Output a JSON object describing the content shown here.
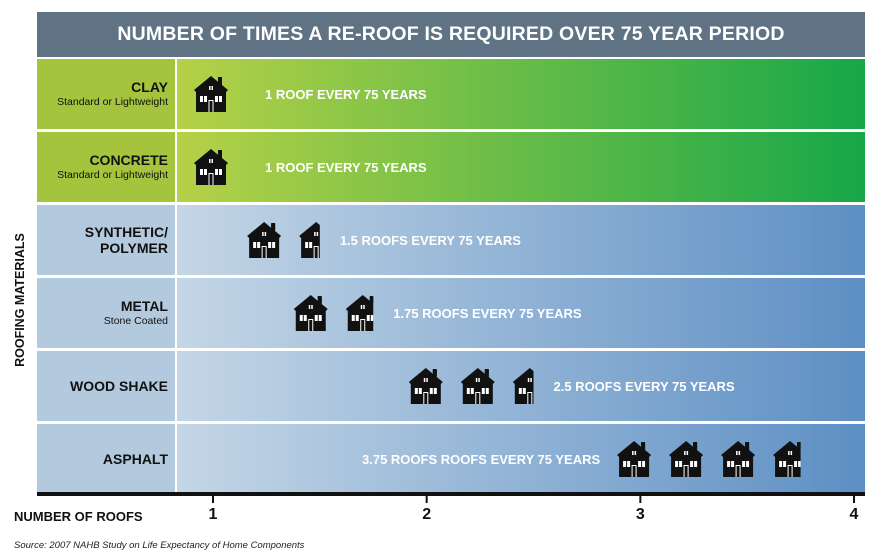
{
  "chart_data": {
    "type": "bar",
    "orientation": "horizontal",
    "title": "NUMBER OF TIMES A RE-ROOF IS REQUIRED OVER 75 YEAR PERIOD",
    "ylabel": "ROOFING MATERIALS",
    "xlabel": "NUMBER OF ROOFS",
    "xlim": [
      0.8,
      4.0
    ],
    "xticks": [
      "1",
      "2",
      "3",
      "4"
    ],
    "grid": false,
    "categories": [
      {
        "name": "CLAY",
        "subtitle": "Standard or Lightweight",
        "value": 1,
        "label": "1 ROOF EVERY 75 YEARS",
        "group": "green"
      },
      {
        "name": "CONCRETE",
        "subtitle": "Standard or Lightweight",
        "value": 1,
        "label": "1 ROOF EVERY 75 YEARS",
        "group": "green"
      },
      {
        "name": "SYNTHETIC/ POLYMER",
        "subtitle": "",
        "value": 1.5,
        "label": "1.5 ROOFS EVERY 75 YEARS",
        "group": "blue"
      },
      {
        "name": "METAL",
        "subtitle": "Stone Coated",
        "value": 1.75,
        "label": "1.75 ROOFS EVERY 75 YEARS",
        "group": "blue"
      },
      {
        "name": "WOOD SHAKE",
        "subtitle": "",
        "value": 2.5,
        "label": "2.5 ROOFS EVERY 75 YEARS",
        "group": "blue"
      },
      {
        "name": "ASPHALT",
        "subtitle": "",
        "value": 3.75,
        "label": "3.75 ROOFS ROOFS EVERY 75 YEARS",
        "group": "blue"
      }
    ],
    "colors": {
      "title_bg": "#5f7384",
      "green_label": "#a3c43c",
      "green_bar_start": "#b6d147",
      "green_bar_end": "#17a748",
      "blue_label": "#b3c9dd",
      "blue_bar_start": "#c4d6e6",
      "blue_bar_end": "#5d8fc4",
      "house": "#111111"
    }
  },
  "source": "Source: 2007 NAHB Study on Life Expectancy of Home Components"
}
